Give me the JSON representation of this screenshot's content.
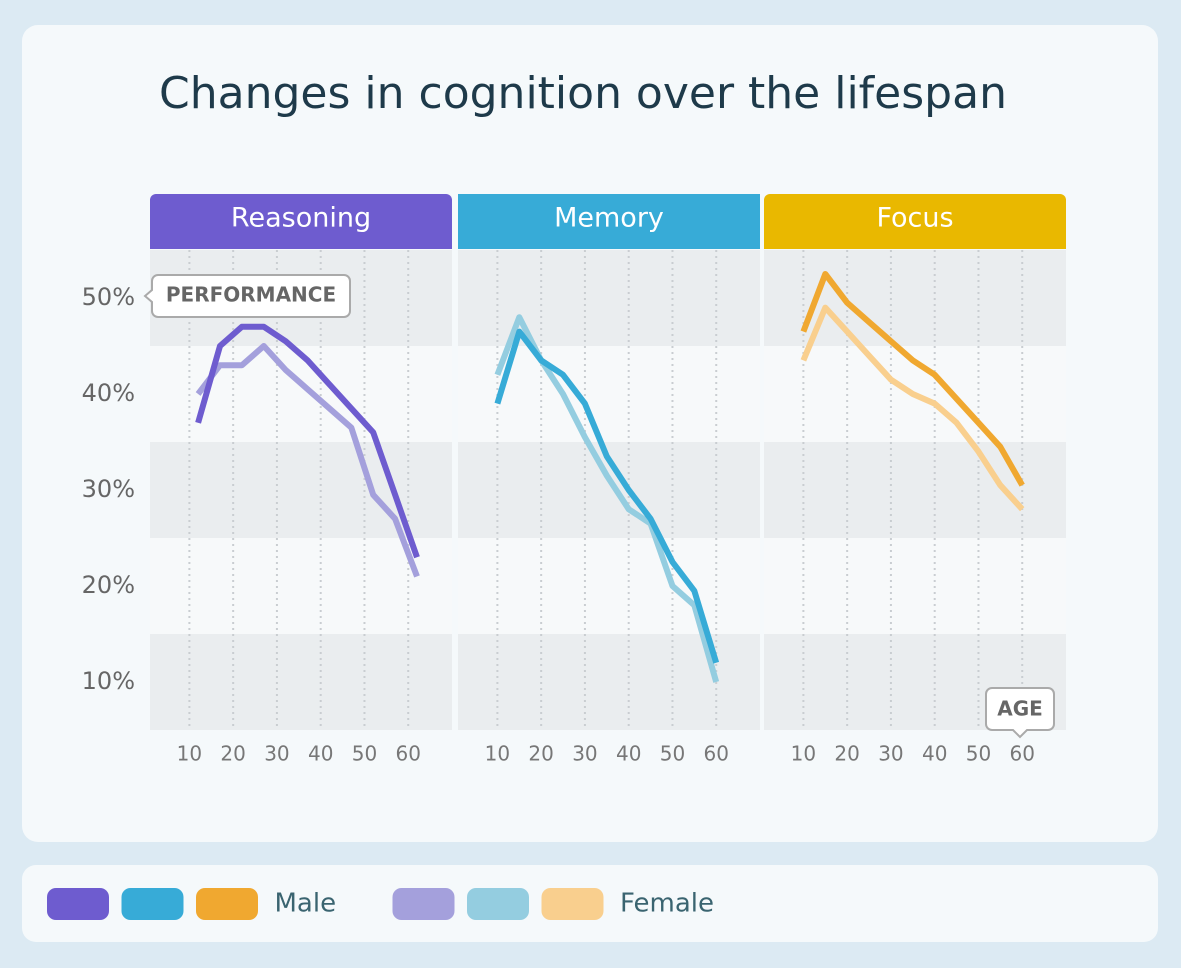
{
  "title": "Changes in cognition over the lifespan",
  "y_label": "PERFORMANCE",
  "x_label": "AGE",
  "chart_data": [
    {
      "type": "line",
      "title": "Reasoning",
      "color": "#6e5ccf",
      "x": [
        12,
        17,
        22,
        27,
        32,
        37,
        42,
        47,
        52,
        57,
        62
      ],
      "series": [
        {
          "name": "Male",
          "color": "#6e5ccf",
          "values": [
            37,
            45,
            47,
            47,
            45.5,
            43.5,
            41,
            38.5,
            36,
            29.5,
            23
          ]
        },
        {
          "name": "Female",
          "color": "#a4a0dc",
          "values": [
            40,
            43,
            43,
            45,
            42.5,
            40.5,
            38.5,
            36.5,
            29.5,
            27,
            21
          ]
        }
      ],
      "xlim": [
        1,
        70
      ],
      "xticks": [
        10,
        20,
        30,
        40,
        50,
        60
      ],
      "ylim": [
        5,
        55
      ],
      "yticks": [
        {
          "value": 10,
          "label": "10%"
        },
        {
          "value": 20,
          "label": "20%"
        },
        {
          "value": 30,
          "label": "30%"
        },
        {
          "value": 40,
          "label": "40%"
        },
        {
          "value": 50,
          "label": "50%"
        }
      ],
      "grid": true
    },
    {
      "type": "line",
      "title": "Memory",
      "color": "#37abd7",
      "x": [
        10,
        15,
        20,
        25,
        30,
        35,
        40,
        45,
        50,
        55,
        60
      ],
      "series": [
        {
          "name": "Male",
          "color": "#37abd7",
          "values": [
            39,
            46.5,
            43.5,
            42,
            39,
            33.5,
            30,
            27,
            22.5,
            19.5,
            12
          ]
        },
        {
          "name": "Female",
          "color": "#94cde0",
          "values": [
            42,
            48,
            43.5,
            40,
            35.5,
            31.5,
            28,
            26.5,
            20,
            18,
            10
          ]
        }
      ],
      "xlim": [
        1,
        70
      ],
      "xticks": [
        10,
        20,
        30,
        40,
        50,
        60
      ],
      "ylim": [
        5,
        55
      ],
      "grid": true
    },
    {
      "type": "line",
      "title": "Focus",
      "color": "#e9b800",
      "x": [
        10,
        15,
        20,
        25,
        30,
        35,
        40,
        45,
        50,
        55,
        60
      ],
      "series": [
        {
          "name": "Male",
          "color": "#f0a830",
          "values": [
            46.5,
            52.5,
            49.5,
            47.5,
            45.5,
            43.5,
            42,
            39.5,
            37,
            34.5,
            30.5
          ]
        },
        {
          "name": "Female",
          "color": "#f9cf8e",
          "values": [
            43.5,
            49,
            46.5,
            44,
            41.5,
            40,
            39,
            37,
            34,
            30.5,
            28
          ]
        }
      ],
      "xlim": [
        1,
        70
      ],
      "xticks": [
        10,
        20,
        30,
        40,
        50,
        60
      ],
      "ylim": [
        5,
        55
      ],
      "grid": true
    }
  ]
}
